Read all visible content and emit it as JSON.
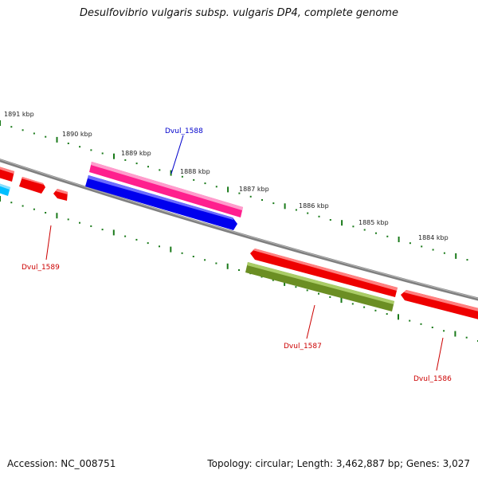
{
  "title": "Desulfovibrio vulgaris subsp. vulgaris DP4, complete genome",
  "footer": {
    "accession": "Accession: NC_008751",
    "topology": "Topology: circular; Length: 3,462,887 bp; Genes: 3,027"
  },
  "colors": {
    "backbone": "#808080",
    "ticks": "#1a7a1a",
    "forward_gene": "#ff1f8e",
    "forward_gene_2": "#0000ee",
    "reverse_gene": "#ee0000",
    "reverse_gene_2": "#6b8e23",
    "cyan_gene": "#00bfff",
    "label_blue": "#0000cc",
    "label_red": "#cc0000"
  },
  "kbp_labels": [
    "1891 kbp",
    "1890 kbp",
    "1889 kbp",
    "1888 kbp",
    "1887 kbp",
    "1886 kbp",
    "1885 kbp",
    "1884 kbp"
  ],
  "gene_labels": [
    "Dvul_1588",
    "Dvul_1589",
    "Dvul_1587",
    "Dvul_1586"
  ]
}
